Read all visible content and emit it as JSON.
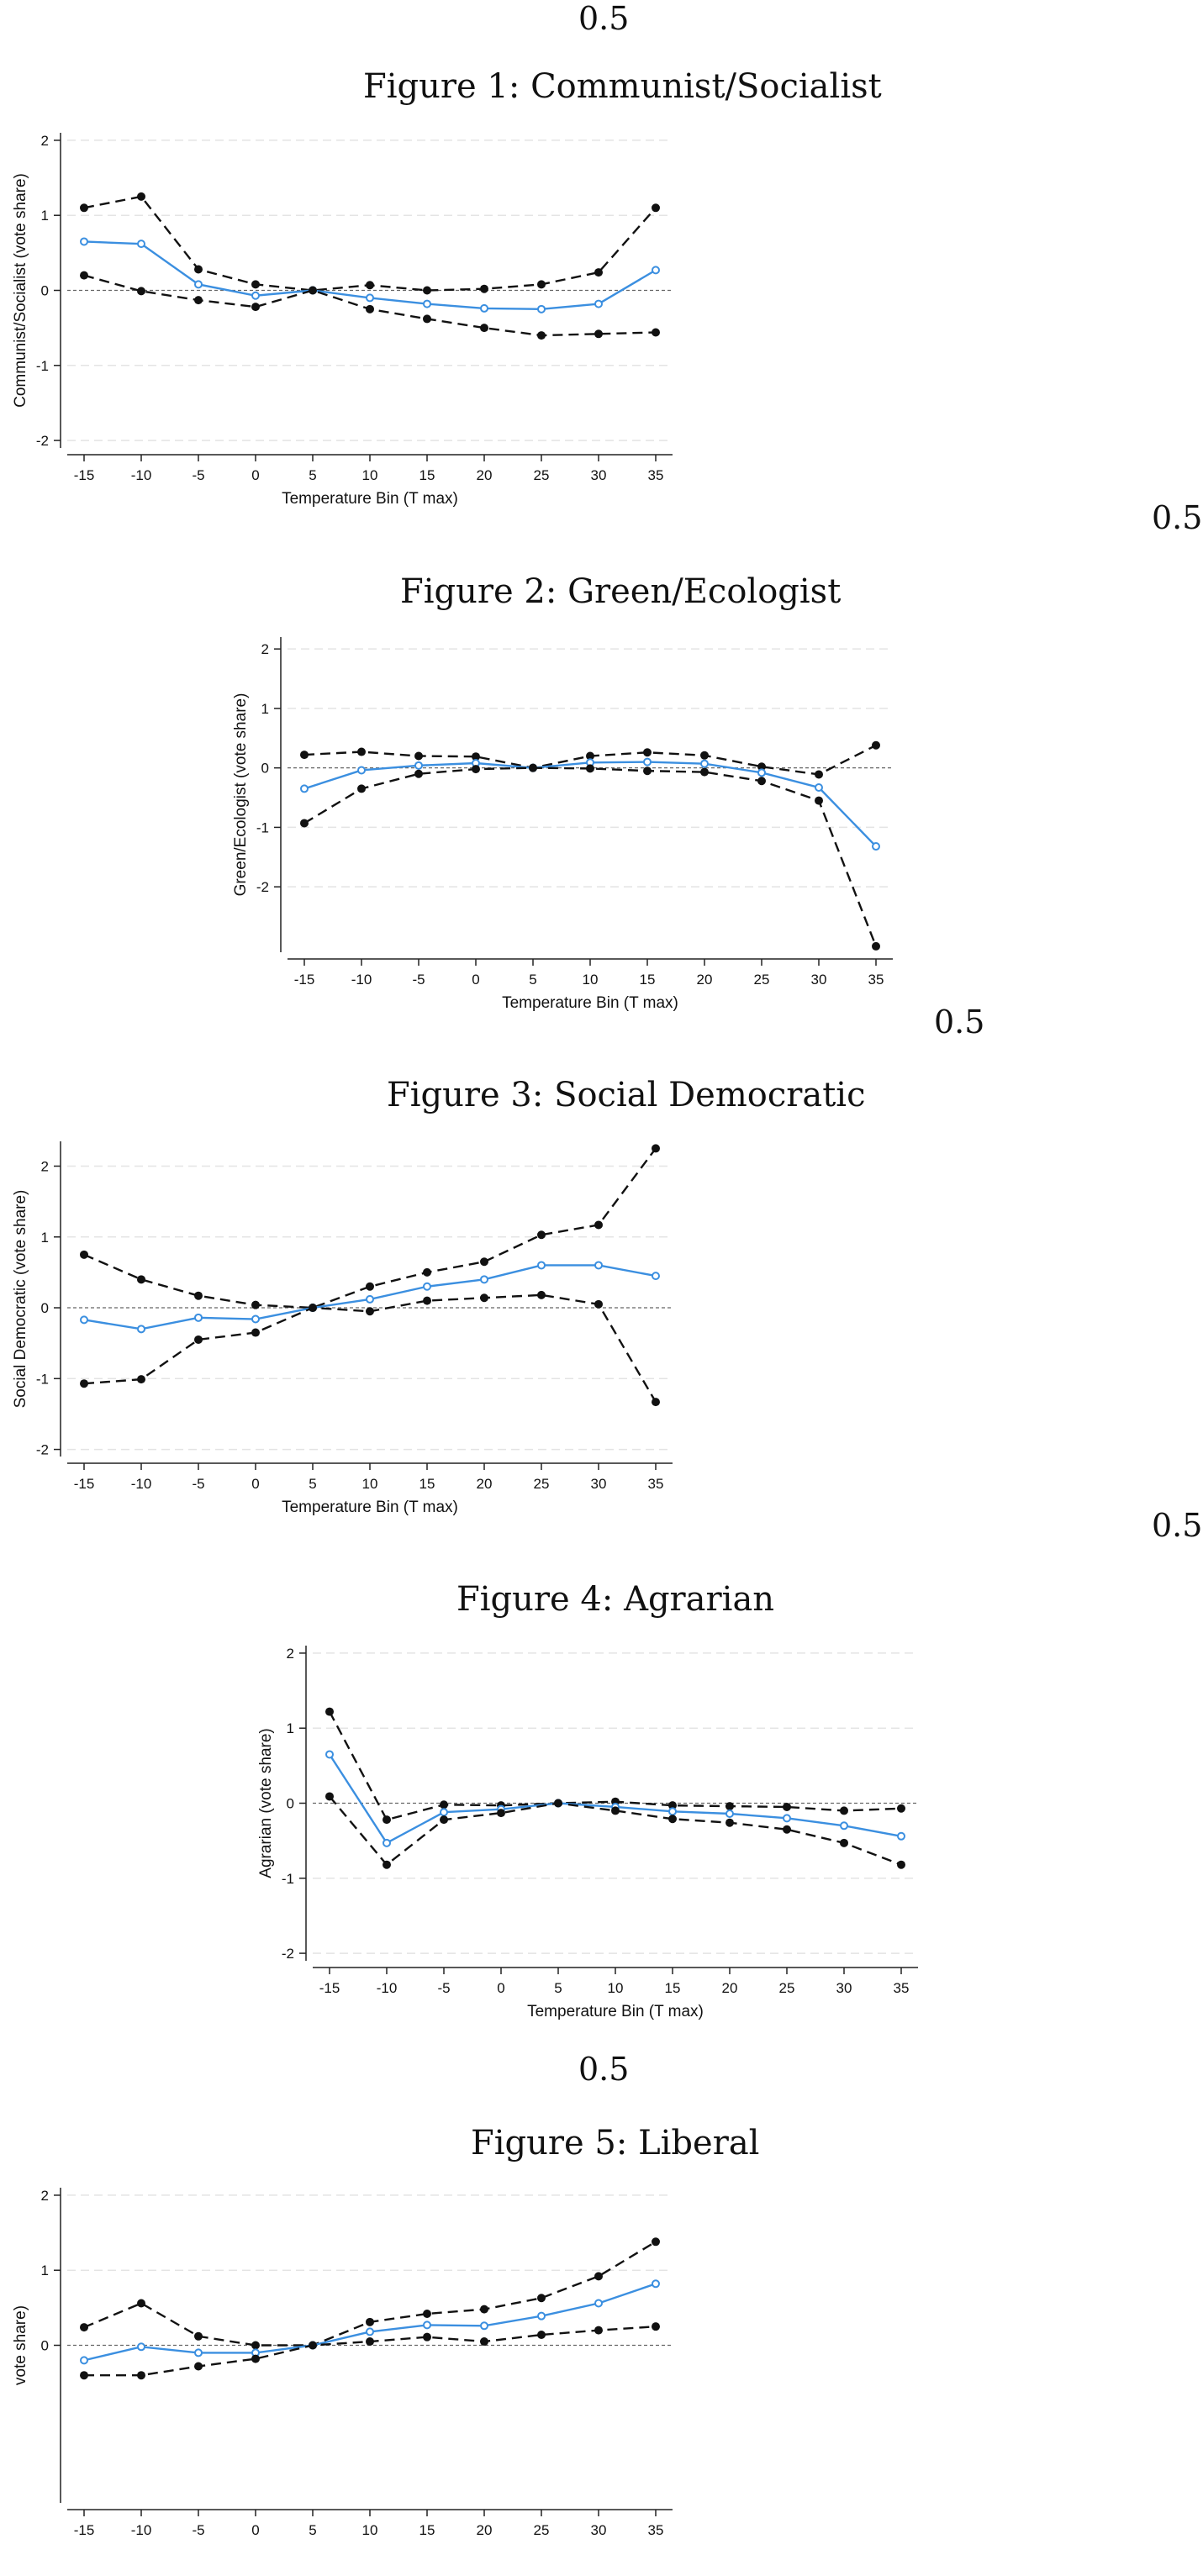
{
  "markers": [
    "0.5",
    "0.5",
    "0.5",
    "0.5",
    "0.5"
  ],
  "figures": [
    {
      "title": "Figure 1: Communist/Socialist"
    },
    {
      "title": "Figure 2: Green/Ecologist"
    },
    {
      "title": "Figure 3: Social Democratic"
    },
    {
      "title": "Figure 4: Agrarian"
    },
    {
      "title": "Figure 5: Liberal"
    }
  ],
  "style": {
    "estimate_color": "#3b8fe0",
    "ci_color": "#111111",
    "grid_color": "#e4e4e4",
    "zero_line_color": "#666666"
  },
  "chart_data": [
    {
      "type": "line",
      "xlabel": "Temperature Bin (T max)",
      "ylabel": "Communist/Socialist (vote share)",
      "categories": [
        "-15",
        "-10",
        "-5",
        "0",
        "5",
        "10",
        "15",
        "20",
        "25",
        "30",
        "35"
      ],
      "yticks": [
        -2,
        -1,
        0,
        1,
        2
      ],
      "ylim": [
        -2.1,
        2.1
      ],
      "grid": true,
      "series": [
        {
          "role": "upper",
          "values": [
            1.1,
            1.25,
            0.28,
            0.08,
            0.0,
            0.07,
            0.0,
            0.02,
            0.08,
            0.24,
            1.1
          ]
        },
        {
          "role": "estimate",
          "values": [
            0.65,
            0.62,
            0.08,
            -0.07,
            0.0,
            -0.1,
            -0.18,
            -0.24,
            -0.25,
            -0.18,
            0.27
          ]
        },
        {
          "role": "lower",
          "values": [
            0.2,
            -0.01,
            -0.13,
            -0.22,
            0.0,
            -0.25,
            -0.38,
            -0.5,
            -0.6,
            -0.58,
            -0.56
          ]
        }
      ]
    },
    {
      "type": "line",
      "xlabel": "Temperature Bin (T max)",
      "ylabel": "Green/Ecologist (vote share)",
      "categories": [
        "-15",
        "-10",
        "-5",
        "0",
        "5",
        "10",
        "15",
        "20",
        "25",
        "30",
        "35"
      ],
      "yticks": [
        -2,
        -1,
        0,
        1,
        2
      ],
      "ylim": [
        -3.1,
        2.2
      ],
      "grid": true,
      "series": [
        {
          "role": "upper",
          "values": [
            0.22,
            0.27,
            0.2,
            0.19,
            0.0,
            0.2,
            0.26,
            0.21,
            0.02,
            -0.11,
            0.38
          ]
        },
        {
          "role": "estimate",
          "values": [
            -0.35,
            -0.04,
            0.04,
            0.08,
            0.0,
            0.09,
            0.1,
            0.07,
            -0.08,
            -0.33,
            -1.32
          ]
        },
        {
          "role": "lower",
          "values": [
            -0.93,
            -0.35,
            -0.1,
            -0.02,
            0.0,
            -0.01,
            -0.05,
            -0.07,
            -0.22,
            -0.55,
            -3.0
          ]
        }
      ]
    },
    {
      "type": "line",
      "xlabel": "Temperature Bin (T max)",
      "ylabel": "Social Democratic (vote share)",
      "categories": [
        "-15",
        "-10",
        "-5",
        "0",
        "5",
        "10",
        "15",
        "20",
        "25",
        "30",
        "35"
      ],
      "yticks": [
        -2,
        -1,
        0,
        1,
        2
      ],
      "ylim": [
        -2.1,
        2.35
      ],
      "grid": true,
      "series": [
        {
          "role": "upper",
          "values": [
            0.75,
            0.4,
            0.17,
            0.04,
            0.0,
            0.3,
            0.5,
            0.65,
            1.03,
            1.17,
            2.25
          ]
        },
        {
          "role": "estimate",
          "values": [
            -0.17,
            -0.3,
            -0.14,
            -0.16,
            0.0,
            0.12,
            0.3,
            0.4,
            0.6,
            0.6,
            0.45
          ]
        },
        {
          "role": "lower",
          "values": [
            -1.07,
            -1.01,
            -0.45,
            -0.35,
            0.0,
            -0.05,
            0.1,
            0.14,
            0.18,
            0.05,
            -1.33
          ]
        }
      ]
    },
    {
      "type": "line",
      "xlabel": "Temperature Bin (T max)",
      "ylabel": "Agrarian (vote share)",
      "categories": [
        "-15",
        "-10",
        "-5",
        "0",
        "5",
        "10",
        "15",
        "20",
        "25",
        "30",
        "35"
      ],
      "yticks": [
        -2,
        -1,
        0,
        1,
        2
      ],
      "ylim": [
        -2.1,
        2.1
      ],
      "grid": true,
      "series": [
        {
          "role": "upper",
          "values": [
            1.22,
            -0.22,
            -0.02,
            -0.03,
            0.0,
            0.02,
            -0.03,
            -0.04,
            -0.05,
            -0.1,
            -0.07
          ]
        },
        {
          "role": "estimate",
          "values": [
            0.65,
            -0.53,
            -0.12,
            -0.08,
            0.0,
            -0.05,
            -0.11,
            -0.14,
            -0.2,
            -0.3,
            -0.44
          ]
        },
        {
          "role": "lower",
          "values": [
            0.09,
            -0.82,
            -0.22,
            -0.13,
            0.0,
            -0.1,
            -0.21,
            -0.26,
            -0.35,
            -0.53,
            -0.82
          ]
        }
      ]
    },
    {
      "type": "line",
      "ylabel": "vote share)",
      "categories": [
        "-15",
        "-10",
        "-5",
        "0",
        "5",
        "10",
        "15",
        "20",
        "25",
        "30",
        "35"
      ],
      "yticks": [
        0,
        1,
        2
      ],
      "ylim": [
        -2.1,
        2.1
      ],
      "grid": true,
      "series": [
        {
          "role": "upper",
          "values": [
            0.24,
            0.56,
            0.12,
            0.0,
            0.0,
            0.31,
            0.42,
            0.48,
            0.63,
            0.92,
            1.38
          ]
        },
        {
          "role": "estimate",
          "values": [
            -0.2,
            -0.02,
            -0.1,
            -0.1,
            0.0,
            0.18,
            0.27,
            0.26,
            0.39,
            0.56,
            0.82
          ]
        },
        {
          "role": "lower",
          "values": [
            -0.4,
            -0.4,
            -0.28,
            -0.18,
            0.0,
            0.05,
            0.11,
            0.05,
            0.14,
            0.2,
            0.25
          ]
        }
      ]
    }
  ]
}
